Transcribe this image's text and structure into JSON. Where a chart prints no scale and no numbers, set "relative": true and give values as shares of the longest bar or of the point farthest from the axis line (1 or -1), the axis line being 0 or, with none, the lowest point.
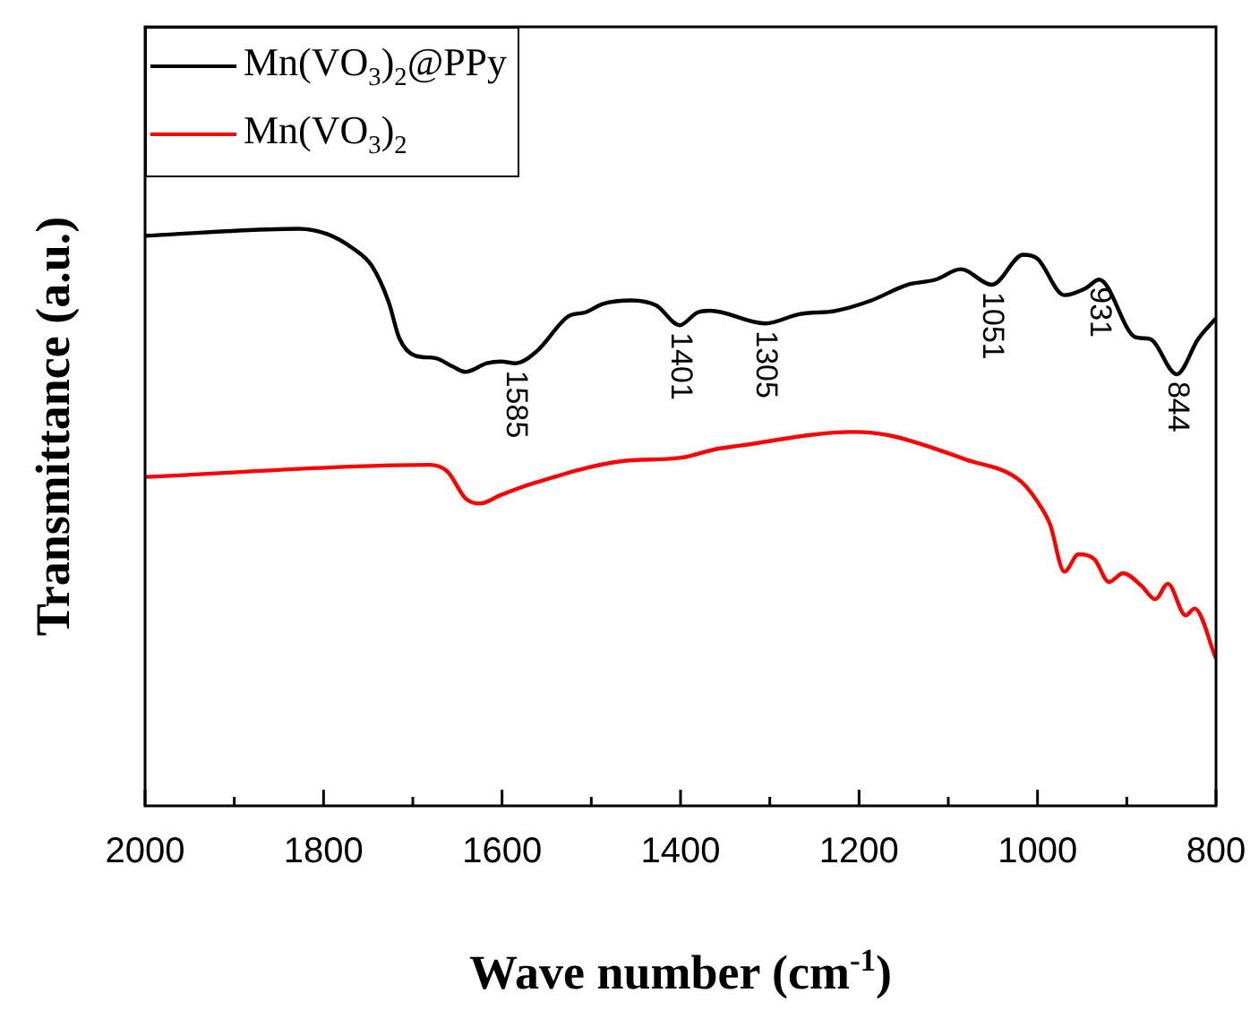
{
  "chart_data": {
    "type": "line",
    "relative": true,
    "xlabel": "Wave number (cm$^{-1}$)",
    "ylabel": "Transmittance (a.u.)",
    "xlim": [
      2000,
      800
    ],
    "xticks": [
      2000,
      {
        "value": 1900,
        "label": null
      },
      1800,
      {
        "value": 1700,
        "label": null
      },
      1600,
      {
        "value": 1500,
        "label": null
      },
      1400,
      {
        "value": 1300,
        "label": null
      },
      1200,
      {
        "value": 1100,
        "label": null
      },
      1000,
      {
        "value": 900,
        "label": null
      },
      800
    ],
    "legend": "top left",
    "grid": false,
    "marker": "none",
    "line_style": "solid",
    "series": [
      {
        "name": "Mn(VO$_{3}$)$_{2}$@PPy",
        "color": "#000000",
        "x": [
          2000,
          1828,
          1796,
          1768,
          1746,
          1727,
          1715,
          1697,
          1675,
          1655,
          1641,
          1617,
          1601,
          1585,
          1561,
          1525,
          1507,
          1487,
          1455,
          1427,
          1401,
          1381,
          1367,
          1305,
          1267,
          1226,
          1186,
          1146,
          1114,
          1086,
          1051,
          1016,
          1000,
          970,
          946,
          931,
          890,
          874,
          844,
          820,
          800
        ],
        "values": [
          0.988,
          1.0,
          0.991,
          0.967,
          0.936,
          0.873,
          0.81,
          0.78,
          0.776,
          0.761,
          0.752,
          0.767,
          0.77,
          0.767,
          0.788,
          0.849,
          0.855,
          0.87,
          0.876,
          0.867,
          0.833,
          0.855,
          0.858,
          0.836,
          0.852,
          0.858,
          0.876,
          0.903,
          0.912,
          0.93,
          0.903,
          0.955,
          0.948,
          0.885,
          0.897,
          0.912,
          0.812,
          0.809,
          0.748,
          0.809,
          0.845
        ]
      },
      {
        "name": "Mn(VO$_{3}$)$_{2}$",
        "color": "#ff0000",
        "x": [
          2000,
          1681,
          1661,
          1641,
          1625,
          1601,
          1567,
          1467,
          1401,
          1361,
          1335,
          1206,
          1166,
          1080,
          1020,
          1000,
          986,
          970,
          954,
          936,
          920,
          904,
          884,
          868,
          854,
          834,
          824,
          800
        ],
        "values": [
          0.57,
          0.591,
          0.579,
          0.533,
          0.524,
          0.539,
          0.558,
          0.597,
          0.603,
          0.618,
          0.624,
          0.648,
          0.642,
          0.6,
          0.564,
          0.527,
          0.488,
          0.406,
          0.436,
          0.427,
          0.388,
          0.403,
          0.382,
          0.358,
          0.385,
          0.33,
          0.342,
          0.255
        ]
      }
    ],
    "annotations": [
      {
        "text": "1585",
        "x": 1585,
        "y": 0.767
      },
      {
        "text": "1401",
        "x": 1401,
        "y": 0.833
      },
      {
        "text": "1305",
        "x": 1305,
        "y": 0.836
      },
      {
        "text": "1051",
        "x": 1051,
        "y": 0.903
      },
      {
        "text": "931",
        "x": 931,
        "y": 0.912
      },
      {
        "text": "844",
        "x": 844,
        "y": 0.748
      }
    ]
  }
}
